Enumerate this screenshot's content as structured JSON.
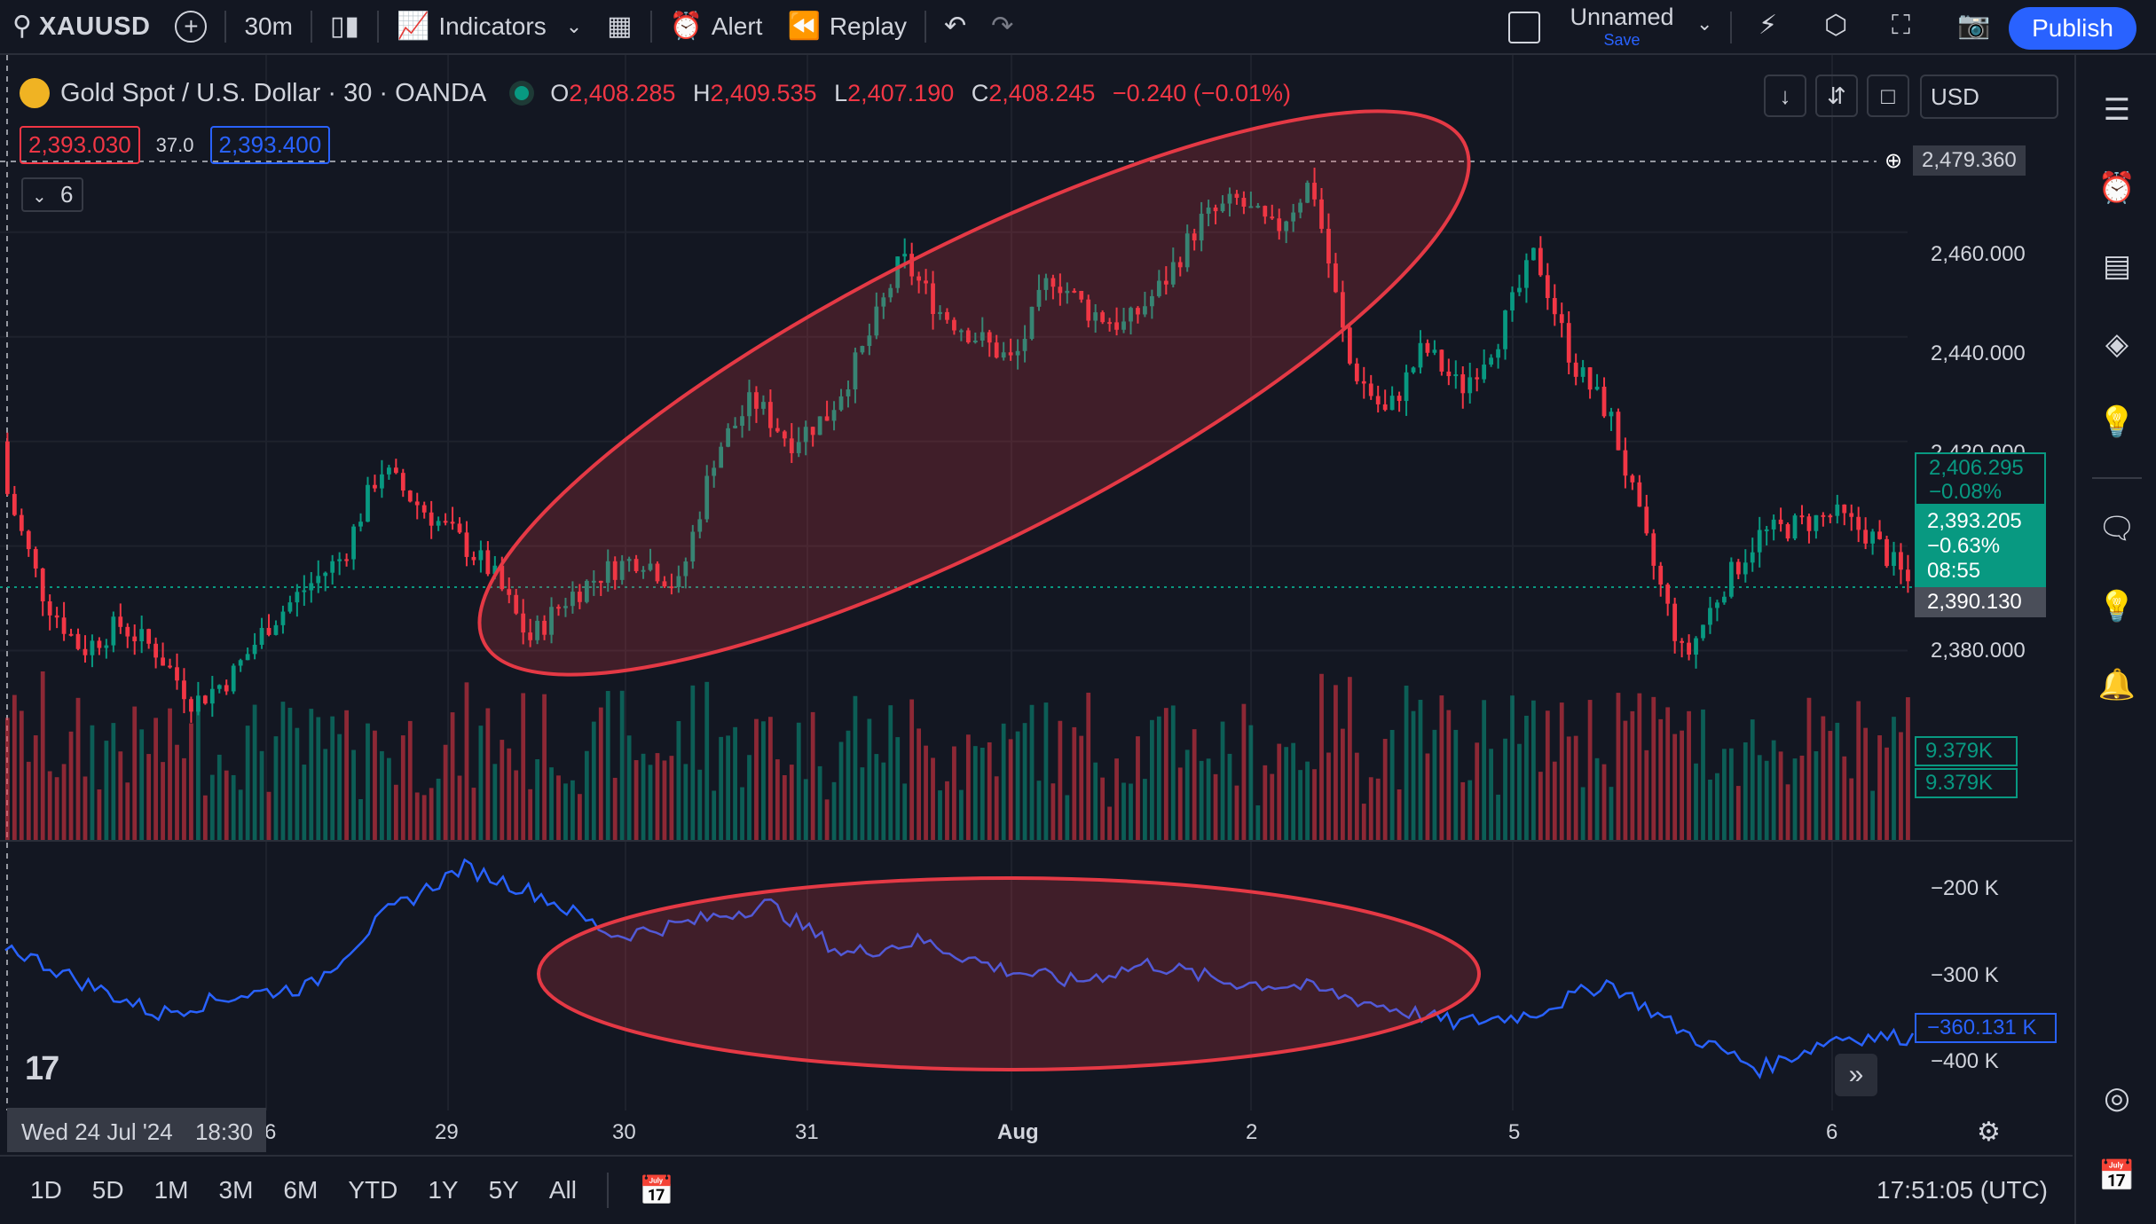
{
  "toolbar": {
    "symbol": "XAUUSD",
    "interval": "30m",
    "indicators_label": "Indicators",
    "alert_label": "Alert",
    "replay_label": "Replay",
    "layout_name": "Unnamed",
    "save_label": "Save",
    "publish_label": "Publish"
  },
  "legend": {
    "title": "Gold Spot / U.S. Dollar · 30 · OANDA",
    "open_key": "O",
    "open": "2,408.285",
    "high_key": "H",
    "high": "2,409.535",
    "low_key": "L",
    "low": "2,407.190",
    "close_key": "C",
    "close": "2,408.245",
    "change": "−0.240 (−0.01%)",
    "bid": "2,393.030",
    "spread": "37.0",
    "ask": "2,393.400",
    "collapsed_count": "6",
    "currency": "USD"
  },
  "price_axis": {
    "ticks": [
      "2,460.000",
      "2,440.000",
      "2,420.000",
      "2,380.000"
    ],
    "crosshair_price": "2,479.360",
    "label_a_price": "2,406.295",
    "label_a_pct": "−0.08%",
    "last_price": "2,393.205",
    "last_pct": "−0.63%",
    "countdown": "08:55",
    "line_price": "2,390.130",
    "volume_a": "9.379K",
    "volume_b": "9.379K",
    "osc_ticks": [
      "−200 K",
      "−300 K",
      "−400 K"
    ],
    "osc_value": "−360.131 K"
  },
  "time_axis": {
    "hover_date": "Wed 24 Jul '24",
    "hover_time": "18:30",
    "labels": [
      "6",
      "29",
      "30",
      "31",
      "Aug",
      "2",
      "5",
      "6"
    ]
  },
  "timeframes": [
    "1D",
    "5D",
    "1M",
    "3M",
    "6M",
    "YTD",
    "1Y",
    "5Y",
    "All"
  ],
  "clock": "17:51:05 (UTC)",
  "colors": {
    "up": "#089981",
    "down": "#f23645",
    "oscillator": "#2962ff",
    "ellipse": "#e53945",
    "accent": "#2962ff"
  },
  "icons": [
    "search-icon",
    "plus-icon",
    "candles-icon",
    "indicators-icon",
    "templates-icon",
    "alert-icon",
    "replay-icon",
    "undo-icon",
    "redo-icon",
    "quick-search-icon",
    "settings-icon",
    "fullscreen-icon",
    "camera-icon",
    "watchlist-icon",
    "alerts-clock-icon",
    "data-window-icon",
    "layers-icon",
    "ideas-icon",
    "chat-icon",
    "streams-icon",
    "notifications-icon",
    "dom-icon",
    "calendar-icon"
  ],
  "chart_data": {
    "type": "candlestick",
    "symbol": "XAUUSD",
    "timeframe": "30",
    "ohlc_sketch": [
      [
        2420,
        2425,
        2405,
        2410
      ],
      [
        2410,
        2412,
        2385,
        2390
      ],
      [
        2390,
        2398,
        2375,
        2380
      ],
      [
        2380,
        2388,
        2372,
        2385
      ],
      [
        2385,
        2392,
        2378,
        2380
      ],
      [
        2380,
        2386,
        2365,
        2370
      ],
      [
        2370,
        2378,
        2360,
        2375
      ],
      [
        2375,
        2388,
        2370,
        2385
      ],
      [
        2385,
        2395,
        2380,
        2392
      ],
      [
        2392,
        2400,
        2385,
        2398
      ],
      [
        2398,
        2420,
        2395,
        2415
      ],
      [
        2415,
        2418,
        2405,
        2408
      ],
      [
        2408,
        2412,
        2398,
        2402
      ],
      [
        2402,
        2406,
        2392,
        2395
      ],
      [
        2395,
        2398,
        2378,
        2382
      ],
      [
        2382,
        2392,
        2376,
        2390
      ],
      [
        2390,
        2398,
        2386,
        2395
      ],
      [
        2395,
        2400,
        2390,
        2398
      ],
      [
        2398,
        2402,
        2390,
        2392
      ],
      [
        2392,
        2420,
        2390,
        2418
      ],
      [
        2418,
        2432,
        2415,
        2428
      ],
      [
        2428,
        2430,
        2418,
        2420
      ],
      [
        2420,
        2428,
        2418,
        2425
      ],
      [
        2425,
        2440,
        2422,
        2438
      ],
      [
        2438,
        2458,
        2435,
        2455
      ],
      [
        2455,
        2458,
        2440,
        2445
      ],
      [
        2445,
        2450,
        2435,
        2440
      ],
      [
        2440,
        2445,
        2430,
        2435
      ],
      [
        2435,
        2455,
        2432,
        2452
      ],
      [
        2452,
        2462,
        2440,
        2445
      ],
      [
        2445,
        2450,
        2438,
        2442
      ],
      [
        2442,
        2452,
        2436,
        2450
      ],
      [
        2450,
        2465,
        2445,
        2462
      ],
      [
        2462,
        2470,
        2458,
        2466
      ],
      [
        2466,
        2470,
        2455,
        2460
      ],
      [
        2460,
        2478,
        2455,
        2470
      ],
      [
        2470,
        2475,
        2430,
        2435
      ],
      [
        2435,
        2445,
        2410,
        2425
      ],
      [
        2425,
        2440,
        2420,
        2438
      ],
      [
        2438,
        2450,
        2425,
        2430
      ],
      [
        2430,
        2445,
        2415,
        2440
      ],
      [
        2440,
        2460,
        2435,
        2456
      ],
      [
        2456,
        2458,
        2430,
        2435
      ],
      [
        2435,
        2445,
        2420,
        2425
      ],
      [
        2425,
        2430,
        2395,
        2400
      ],
      [
        2400,
        2405,
        2370,
        2378
      ],
      [
        2378,
        2395,
        2372,
        2392
      ],
      [
        2392,
        2405,
        2388,
        2402
      ],
      [
        2402,
        2410,
        2396,
        2404
      ],
      [
        2404,
        2415,
        2398,
        2406
      ],
      [
        2406,
        2412,
        2398,
        2402
      ],
      [
        2402,
        2406,
        2390,
        2393
      ]
    ],
    "price_range": [
      2365,
      2482
    ],
    "oscillator_range": [
      -440000,
      -160000
    ],
    "oscillator_last": -360131
  }
}
